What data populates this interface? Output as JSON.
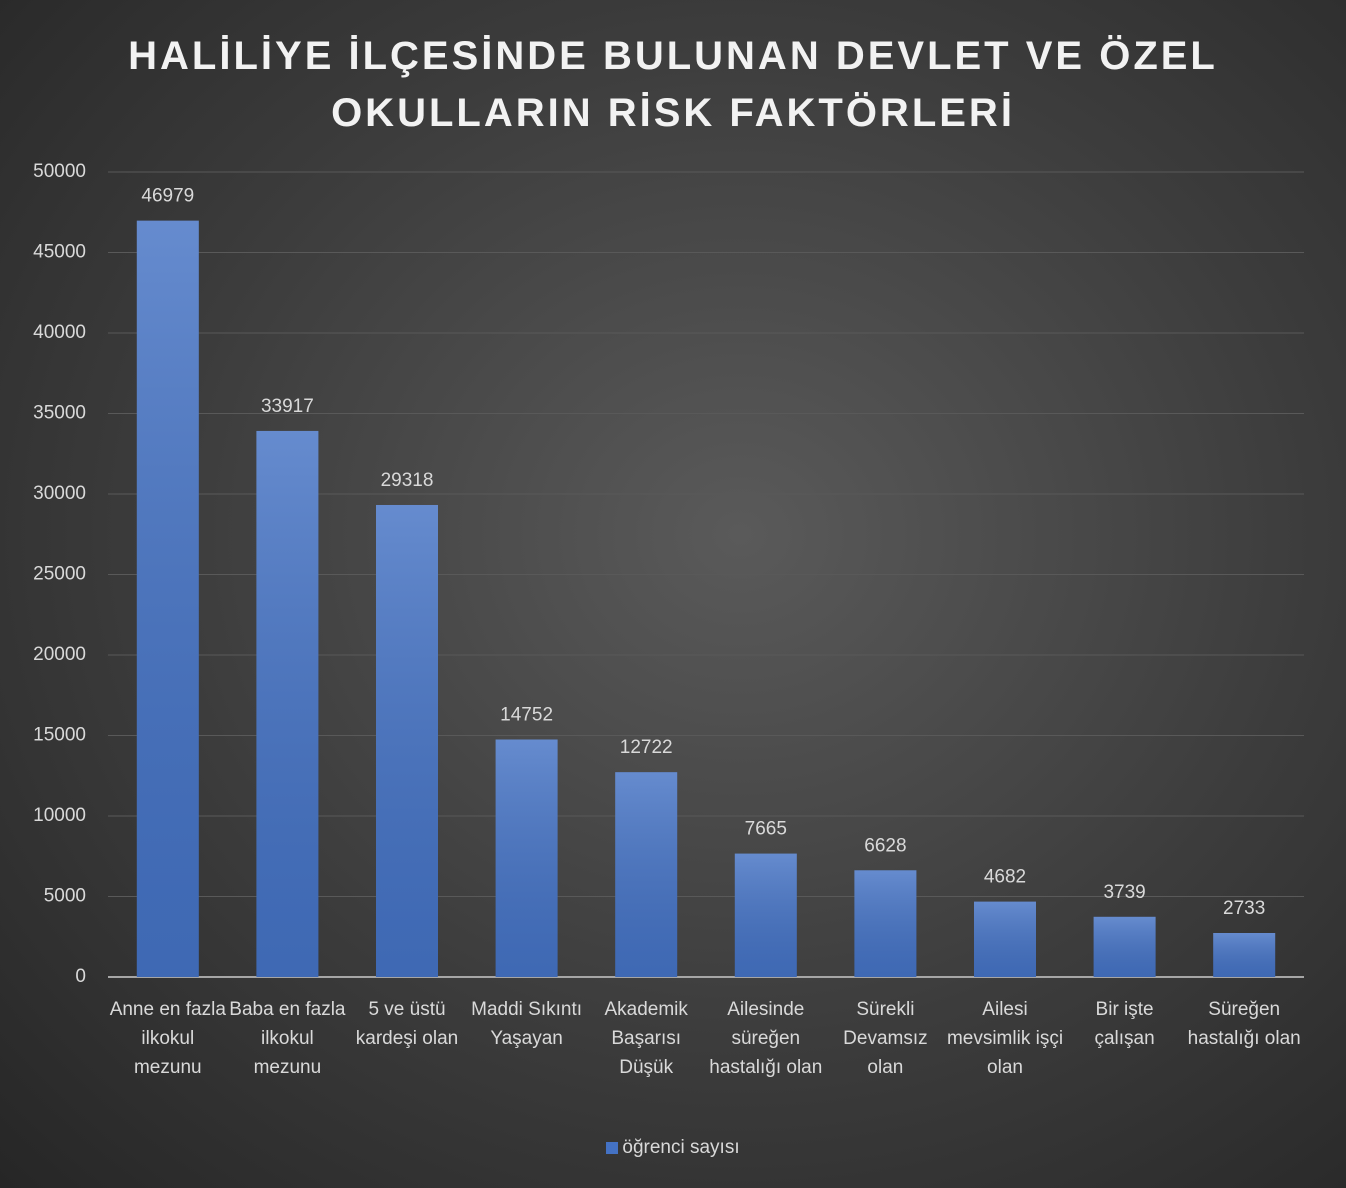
{
  "chart_data": {
    "type": "bar",
    "title": "HALİLİYE İLÇESİNDE BULUNAN DEVLET VE ÖZEL OKULLARIN RİSK FAKTÖRLERİ",
    "categories": [
      "Anne en fazla ilkokul mezunu",
      "Baba en fazla ilkokul mezunu",
      "5 ve üstü kardeşi olan",
      "Maddi Sıkıntı Yaşayan",
      "Akademik Başarısı Düşük",
      "Ailesinde süreğen hastalığı olan",
      "Sürekli Devamsız olan",
      "Ailesi mevsimlik işçi olan",
      "Bir işte çalışan",
      "Süreğen hastalığı olan"
    ],
    "series": [
      {
        "name": "öğrenci sayısı",
        "color": "#4472c4",
        "values": [
          46979,
          33917,
          29318,
          14752,
          12722,
          7665,
          6628,
          4682,
          3739,
          2733
        ]
      }
    ],
    "ylim": [
      0,
      50000
    ],
    "yticks": [
      0,
      5000,
      10000,
      15000,
      20000,
      25000,
      30000,
      35000,
      40000,
      45000,
      50000
    ],
    "grid": true,
    "legend": "bottom"
  }
}
